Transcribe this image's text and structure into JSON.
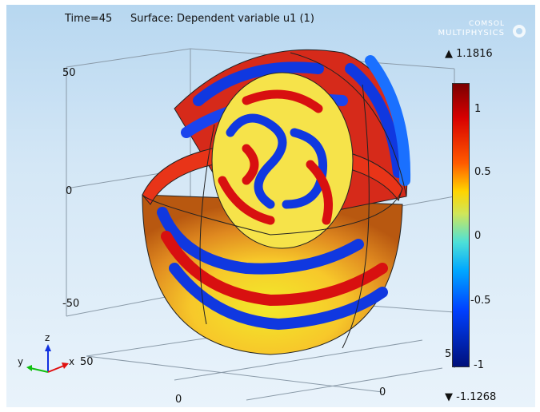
{
  "header": {
    "time_label": "Time=45",
    "surface_label": "Surface: Dependent variable u1 (1)"
  },
  "brand": {
    "line1": "COMSOL",
    "line2": "MULTIPHYSICS"
  },
  "axes": {
    "z_ticks": [
      "50",
      "0",
      "-50"
    ],
    "x_ticks": [
      "50",
      "0"
    ],
    "y_ticks": [
      "0",
      "5"
    ],
    "triad": {
      "z": "z",
      "y": "y",
      "x": "x"
    }
  },
  "colorbar": {
    "max_label": "1.1816",
    "min_label": "-1.1268",
    "max_marker": "▲",
    "min_marker": "▼",
    "ticks": [
      "1",
      "0.5",
      "0",
      "-0.5",
      "-1"
    ],
    "colors": [
      "#7a0000",
      "#d70000",
      "#ff5a00",
      "#ffd400",
      "#4de0d8",
      "#00a8ff",
      "#0040ff",
      "#00107a"
    ]
  }
}
